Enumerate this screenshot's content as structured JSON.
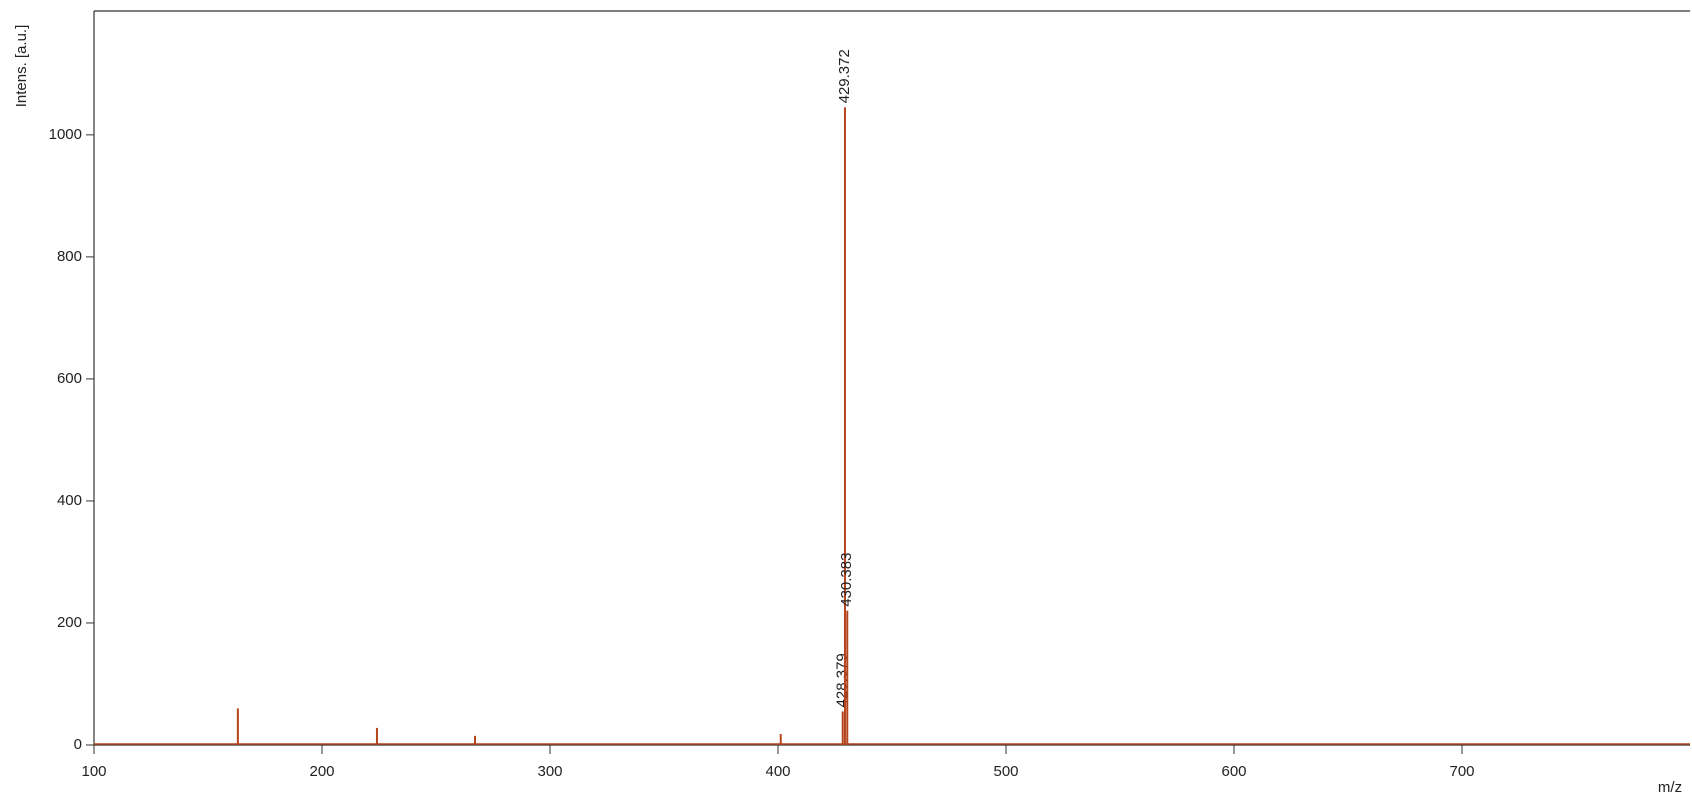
{
  "chart_data": {
    "type": "spectrum",
    "y_label": "Intens. [a.u.]",
    "x_label": "m/z",
    "x": [
      163.1,
      224.1,
      267.1,
      401.2,
      428.379,
      429.372,
      430.383
    ],
    "values": [
      60,
      28,
      15,
      18,
      55,
      1045,
      220
    ],
    "peak_labels": [
      null,
      null,
      null,
      null,
      "428.379",
      "429.372",
      "430.383"
    ],
    "color": "#b5441c",
    "xlim": [
      100,
      800
    ],
    "xticks": [
      100,
      200,
      300,
      400,
      500,
      600,
      700
    ],
    "ylim": [
      0,
      1203
    ],
    "yticks": [
      0,
      200,
      400,
      600,
      800,
      1000
    ]
  }
}
